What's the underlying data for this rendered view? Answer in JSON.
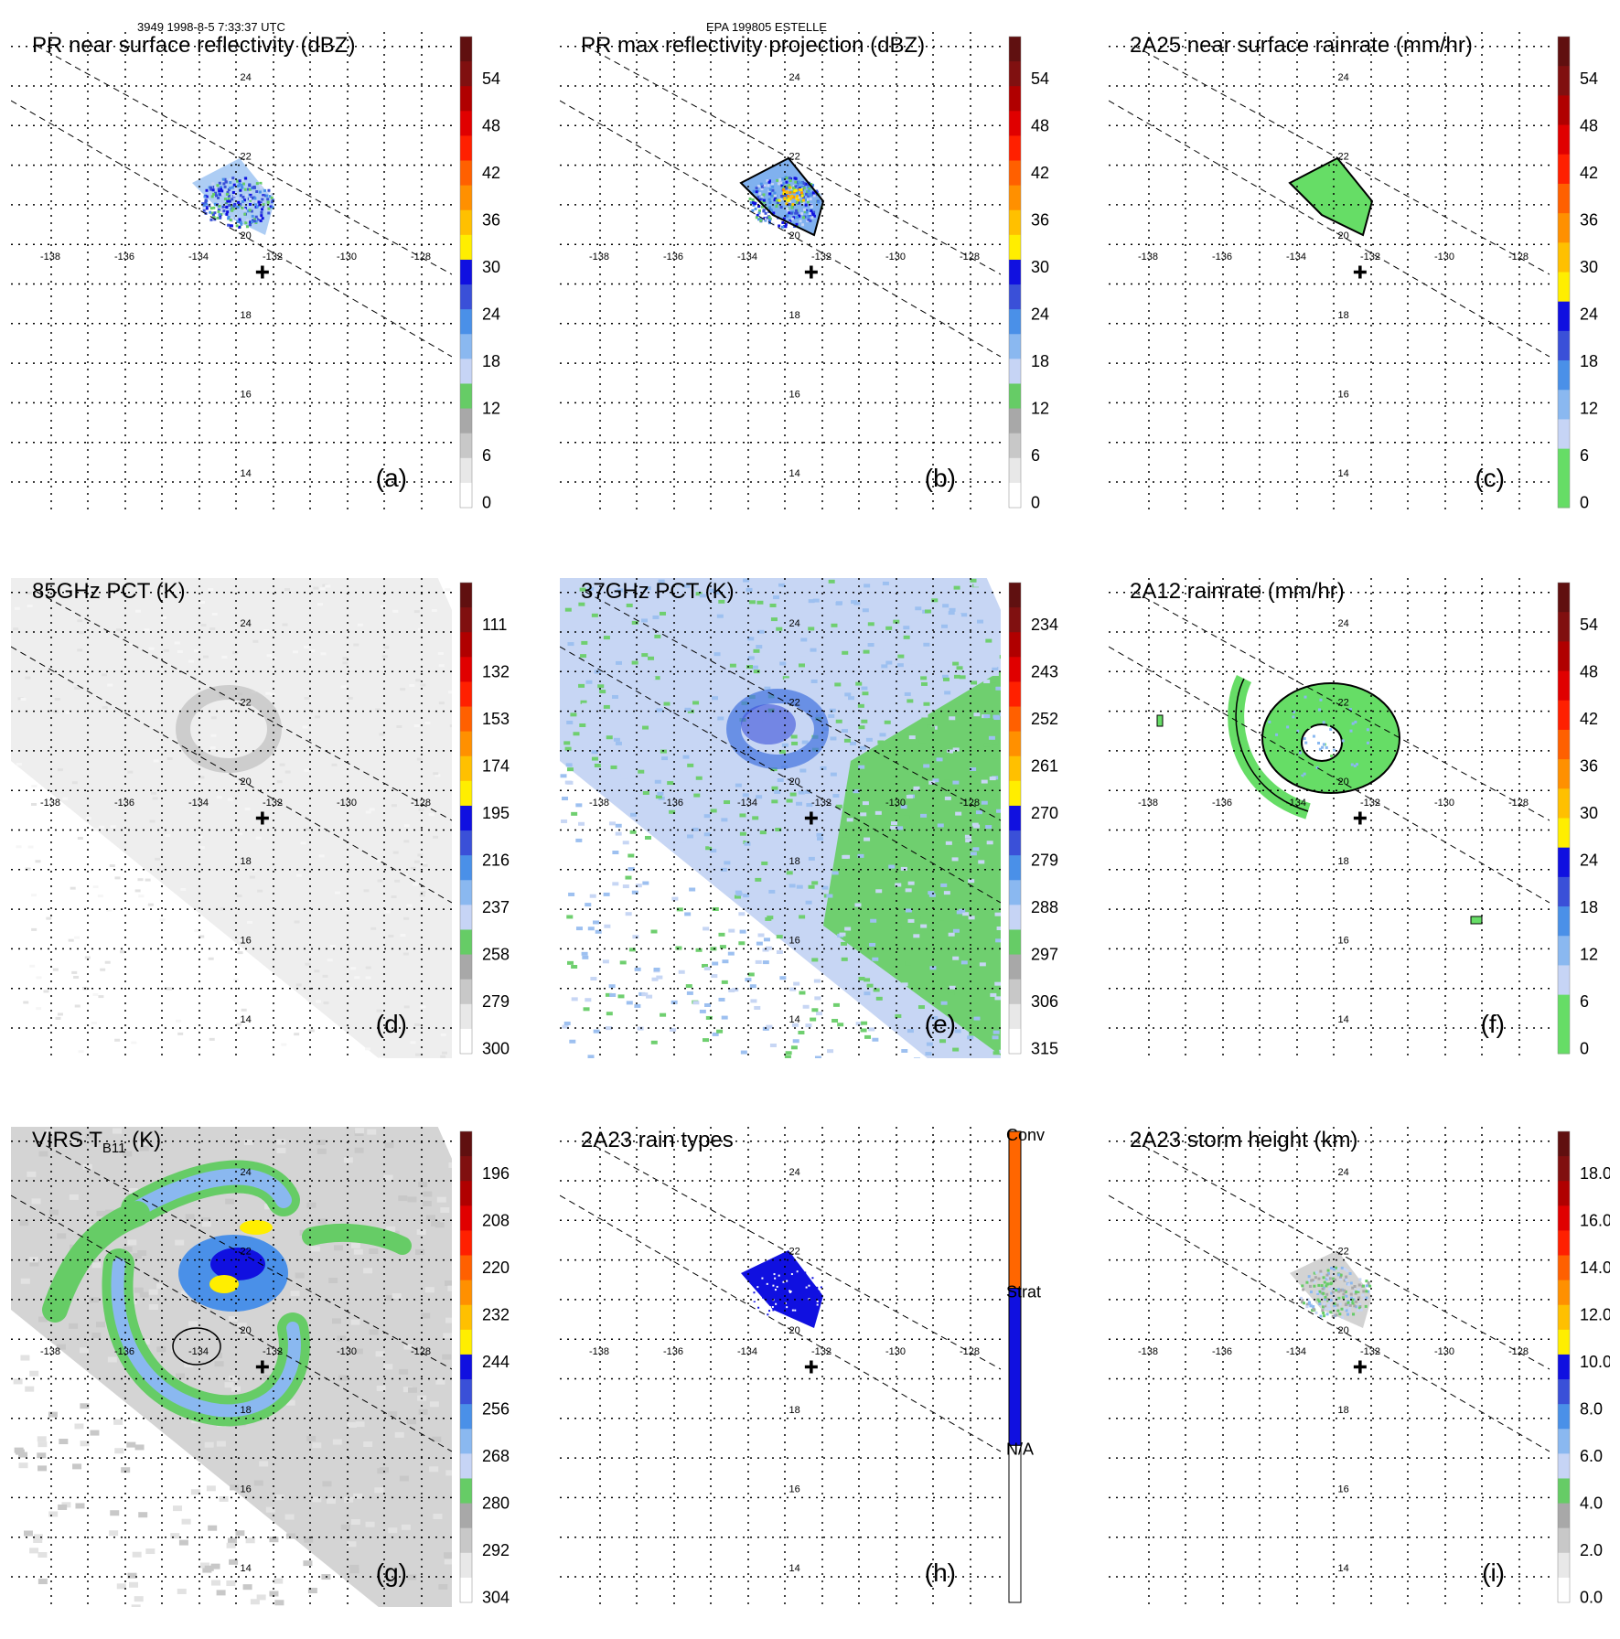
{
  "header": {
    "orbit_time": "3949 1998-8-5 7:33:37 UTC",
    "storm": "EPA 199805 ESTELLE"
  },
  "grid": {
    "lon_labels": [
      "-138",
      "-136",
      "-134",
      "-132",
      "-130",
      "-128"
    ],
    "lat_labels": [
      "24",
      "22",
      "20",
      "18",
      "16",
      "14"
    ]
  },
  "panels": [
    {
      "id": "a",
      "title": "PR near surface reflectivity (dBZ)",
      "label": "(a)",
      "ticks": [
        "54",
        "48",
        "42",
        "36",
        "30",
        "24",
        "18",
        "12",
        "6",
        "0"
      ],
      "colorbar": "dbz",
      "field": "pr_small"
    },
    {
      "id": "b",
      "title": "PR max reflectivity projection (dBZ)",
      "label": "(b)",
      "ticks": [
        "54",
        "48",
        "42",
        "36",
        "30",
        "24",
        "18",
        "12",
        "6",
        "0"
      ],
      "colorbar": "dbz",
      "field": "pr_max"
    },
    {
      "id": "c",
      "title": "2A25 near surface rainrate (mm/hr)",
      "label": "(c)",
      "ticks": [
        "54",
        "48",
        "42",
        "36",
        "30",
        "24",
        "18",
        "12",
        "6",
        "0"
      ],
      "colorbar": "rain",
      "field": "rain_small"
    },
    {
      "id": "d",
      "title": "85GHz PCT (K)",
      "label": "(d)",
      "ticks": [
        "111",
        "132",
        "153",
        "174",
        "195",
        "216",
        "237",
        "258",
        "279",
        "300"
      ],
      "colorbar": "dbz",
      "field": "pct85"
    },
    {
      "id": "e",
      "title": "37GHz PCT (K)",
      "label": "(e)",
      "ticks": [
        "234",
        "243",
        "252",
        "261",
        "270",
        "279",
        "288",
        "297",
        "306",
        "315"
      ],
      "colorbar": "dbz",
      "field": "pct37"
    },
    {
      "id": "f",
      "title": "2A12 rainrate (mm/hr)",
      "label": "(f)",
      "ticks": [
        "54",
        "48",
        "42",
        "36",
        "30",
        "24",
        "18",
        "12",
        "6",
        "0"
      ],
      "colorbar": "rain",
      "field": "rain_tmi"
    },
    {
      "id": "g",
      "title_main": "VIRS T",
      "title_sub": "B11",
      "title_end": " (K)",
      "label": "(g)",
      "ticks": [
        "196",
        "208",
        "220",
        "232",
        "244",
        "256",
        "268",
        "280",
        "292",
        "304"
      ],
      "colorbar": "dbz",
      "field": "virs"
    },
    {
      "id": "h",
      "title": "2A23 rain types",
      "label": "(h)",
      "ticks": [
        "Conv",
        "Strat",
        "N/A"
      ],
      "colorbar": "type",
      "field": "types"
    },
    {
      "id": "i",
      "title": "2A23 storm height (km)",
      "label": "(i)",
      "ticks": [
        "18.0",
        "16.0",
        "14.0",
        "12.0",
        "10.0",
        "8.0",
        "6.0",
        "4.0",
        "2.0",
        "0.0"
      ],
      "colorbar": "dbz",
      "field": "height"
    }
  ],
  "colors": {
    "dbz_scale": [
      "#ffffff",
      "#e8e8e8",
      "#c8c8c8",
      "#a8a8a8",
      "#66cc66",
      "#c6d4f5",
      "#8ab8f0",
      "#4a90e8",
      "#3a50d8",
      "#1010e0",
      "#ffee00",
      "#ffc000",
      "#ff9000",
      "#ff6000",
      "#ff2000",
      "#e00000",
      "#b00000",
      "#801010",
      "#601010"
    ],
    "rain_scale": [
      "#66dd66",
      "#66dd66",
      "#c6d4f5",
      "#8ab8f0",
      "#4a90e8",
      "#3a50d8",
      "#1010e0",
      "#ffee00",
      "#ffc000",
      "#ff9000",
      "#ff6000",
      "#ff2000",
      "#e00000",
      "#b00000",
      "#801010",
      "#601010"
    ]
  }
}
